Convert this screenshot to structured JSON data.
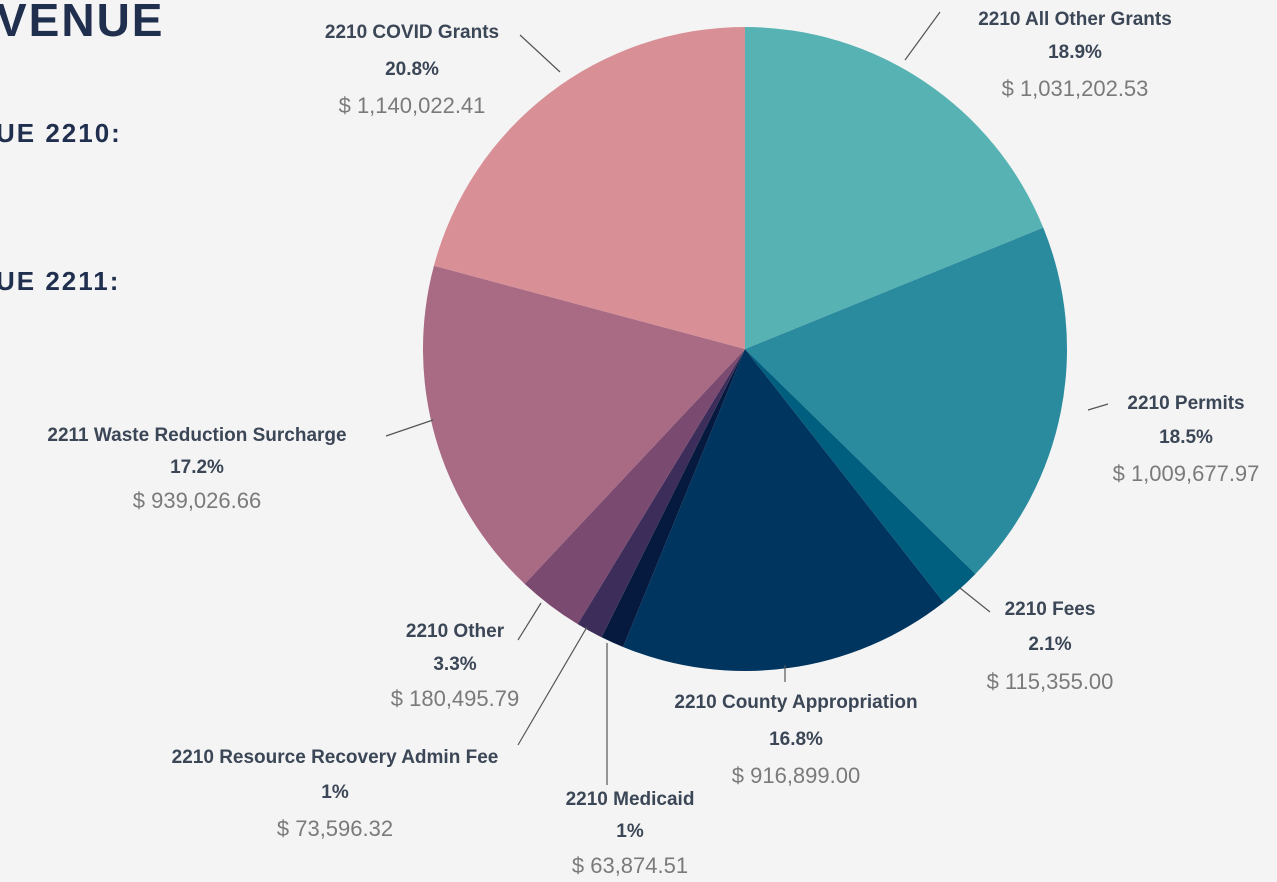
{
  "page": {
    "heading": "VENUE",
    "lines": [
      "UE 2210:",
      "UE 2211:"
    ]
  },
  "chart_data": {
    "type": "pie",
    "categories": [
      "2210 All Other Grants",
      "2210 Permits",
      "2210 Fees",
      "2210 County Appropriation",
      "2210 Medicaid",
      "2210 Resource Recovery Admin Fee",
      "2210 Other",
      "2211 Waste Reduction Surcharge",
      "2210 COVID Grants"
    ],
    "values": [
      1031202.53,
      1009677.97,
      115355.0,
      916899.0,
      63874.51,
      73596.32,
      180495.79,
      939026.66,
      1140022.41
    ],
    "value_labels": [
      "$ 1,031,202.53",
      "$ 1,009,677.97",
      "$ 115,355.00",
      "$ 916,899.00",
      "$ 63,874.51",
      "$ 73,596.32",
      "$ 180,495.79",
      "$ 939,026.66",
      "$ 1,140,022.41"
    ],
    "percentages": [
      18.9,
      18.5,
      2.1,
      16.8,
      1,
      1,
      3.3,
      17.2,
      20.8
    ],
    "percentage_labels": [
      "18.9%",
      "18.5%",
      "2.1%",
      "16.8%",
      "1%",
      "1%",
      "3.3%",
      "17.2%",
      "20.8%"
    ],
    "colors": [
      "#57b3b3",
      "#2a8a9e",
      "#005f7f",
      "#003560",
      "#061a40",
      "#3c2d5a",
      "#7a4a70",
      "#a96a84",
      "#d88f96"
    ]
  }
}
